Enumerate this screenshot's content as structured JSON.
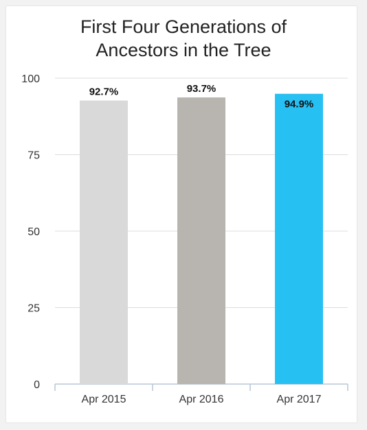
{
  "chart_data": {
    "type": "bar",
    "title_lines": [
      "First Four Generations of",
      "Ancestors in the Tree"
    ],
    "categories": [
      "Apr 2015",
      "Apr 2016",
      "Apr 2017"
    ],
    "values": [
      92.7,
      93.7,
      94.9
    ],
    "data_labels": [
      "92.7%",
      "93.7%",
      "94.9%"
    ],
    "bar_colors": [
      "#d9d9d9",
      "#b8b5b0",
      "#27c0f2"
    ],
    "ylim": [
      0,
      100
    ],
    "yticks": [
      0,
      25,
      50,
      75,
      100
    ],
    "grid": true,
    "xlabel": "",
    "ylabel": ""
  }
}
